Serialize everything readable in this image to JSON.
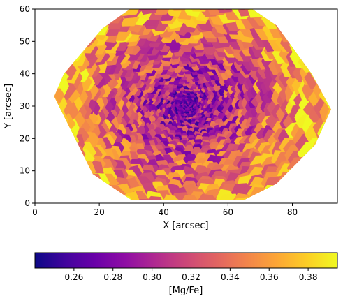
{
  "chart_data": [
    {
      "type": "heatmap",
      "description_kind": "voronoi-binned 2D map",
      "xlabel": "X [arcsec]",
      "ylabel": "Y [arcsec]",
      "xlim": [
        0,
        94
      ],
      "ylim": [
        0,
        60
      ],
      "xticks": [
        0,
        20,
        40,
        60,
        80
      ],
      "yticks": [
        0,
        10,
        20,
        30,
        40,
        50,
        60
      ],
      "center": [
        47,
        30
      ],
      "outline": [
        [
          30,
          1
        ],
        [
          65,
          1
        ],
        [
          75,
          6
        ],
        [
          87,
          18
        ],
        [
          92,
          29
        ],
        [
          86,
          40
        ],
        [
          75,
          55
        ],
        [
          66,
          61
        ],
        [
          31,
          61
        ],
        [
          21,
          54
        ],
        [
          9,
          40
        ],
        [
          6,
          33
        ],
        [
          18,
          9
        ]
      ],
      "value_range": [
        0.24,
        0.395
      ],
      "grid": false,
      "legend": "none"
    },
    {
      "type": "colorbar",
      "label": "[Mg/Fe]",
      "colormap": "plasma",
      "range": [
        0.24,
        0.395
      ],
      "ticks": [
        "0.26",
        "0.28",
        "0.30",
        "0.32",
        "0.34",
        "0.36",
        "0.38"
      ],
      "tick_values": [
        0.26,
        0.28,
        0.3,
        0.32,
        0.34,
        0.36,
        0.38
      ],
      "placement": "bottom",
      "orientation": "horizontal"
    }
  ]
}
